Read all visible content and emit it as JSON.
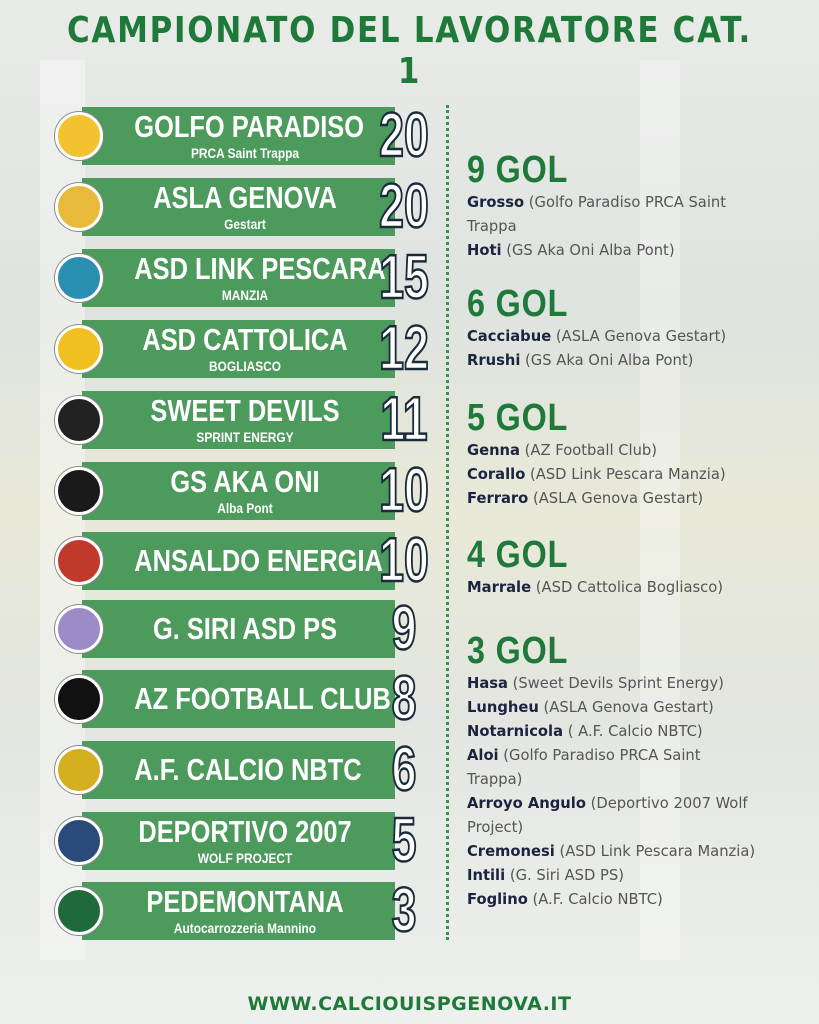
{
  "title": "CAMPIONATO DEL LAVORATORE CAT. 1",
  "colors": {
    "accent": "#1f7a3a",
    "band": "#4d9a5d",
    "name": "#1a2340"
  },
  "teams": [
    {
      "name": "GOLFO PARADISO",
      "sub": "PRCA Saint Trappa",
      "points": "20",
      "logo": "#f2c230"
    },
    {
      "name": "ASLA GENOVA",
      "sub": "Gestart",
      "points": "20",
      "logo": "#e9b93a"
    },
    {
      "name": "ASD LINK PESCARA",
      "sub": "MANZIA",
      "points": "15",
      "logo": "#2a8fb0"
    },
    {
      "name": "ASD CATTOLICA",
      "sub": "BOGLIASCO",
      "points": "12",
      "logo": "#f0c020"
    },
    {
      "name": "SWEET DEVILS",
      "sub": "SPRINT ENERGY",
      "points": "11",
      "logo": "#222222"
    },
    {
      "name": "GS AKA ONI",
      "sub": "Alba Pont",
      "points": "10",
      "logo": "#1a1a1a"
    },
    {
      "name": "ANSALDO ENERGIA",
      "sub": "",
      "points": "10",
      "logo": "#c0392b"
    },
    {
      "name": "G. SIRI ASD PS",
      "sub": "",
      "points": "9",
      "logo": "#9b8cc8"
    },
    {
      "name": "AZ FOOTBALL CLUB",
      "sub": "",
      "points": "8",
      "logo": "#111111"
    },
    {
      "name": "A.F. CALCIO NBTC",
      "sub": "",
      "points": "6",
      "logo": "#d4b020"
    },
    {
      "name": "DEPORTIVO 2007",
      "sub": "WOLF PROJECT",
      "points": "5",
      "logo": "#2a4a7a"
    },
    {
      "name": "PEDEMONTANA",
      "sub": "Autocarrozzeria Mannino",
      "points": "3",
      "logo": "#1f6a3a"
    }
  ],
  "scorers": [
    {
      "goals": "9 GOL",
      "players": [
        [
          "Grosso",
          " (Golfo Paradiso PRCA Saint"
        ],
        [
          "",
          "Trappa"
        ],
        [
          "Hoti",
          " (GS Aka Oni Alba Pont)"
        ]
      ]
    },
    {
      "goals": "6 GOL",
      "players": [
        [
          "Cacciabue",
          " (ASLA Genova Gestart)"
        ],
        [
          "Rrushi",
          " (GS Aka Oni Alba Pont)"
        ]
      ]
    },
    {
      "goals": "5 GOL",
      "players": [
        [
          "Genna",
          " (AZ Football Club)"
        ],
        [
          "Corallo",
          " (ASD Link Pescara Manzia)"
        ],
        [
          "Ferraro",
          " (ASLA Genova Gestart)"
        ]
      ]
    },
    {
      "goals": "4 GOL",
      "players": [
        [
          "Marrale",
          " (ASD Cattolica Bogliasco)"
        ]
      ]
    },
    {
      "goals": "3 GOL",
      "players": [
        [
          "Hasa",
          " (Sweet Devils Sprint Energy)"
        ],
        [
          "Lungheu",
          " (ASLA Genova Gestart)"
        ],
        [
          "Notarnicola",
          " ( A.F. Calcio NBTC)"
        ],
        [
          "Aloi",
          " (Golfo Paradiso PRCA Saint"
        ],
        [
          "",
          "Trappa)"
        ],
        [
          "Arroyo Angulo",
          " (Deportivo 2007 Wolf"
        ],
        [
          "",
          "Project)"
        ],
        [
          "Cremonesi",
          " (ASD Link Pescara Manzia)"
        ],
        [
          "Intili",
          " (G. Siri ASD PS)"
        ],
        [
          "Foglino",
          " (A.F. Calcio NBTC)"
        ]
      ]
    }
  ],
  "footer": "WWW.CALCIOUISPGENOVA.IT"
}
